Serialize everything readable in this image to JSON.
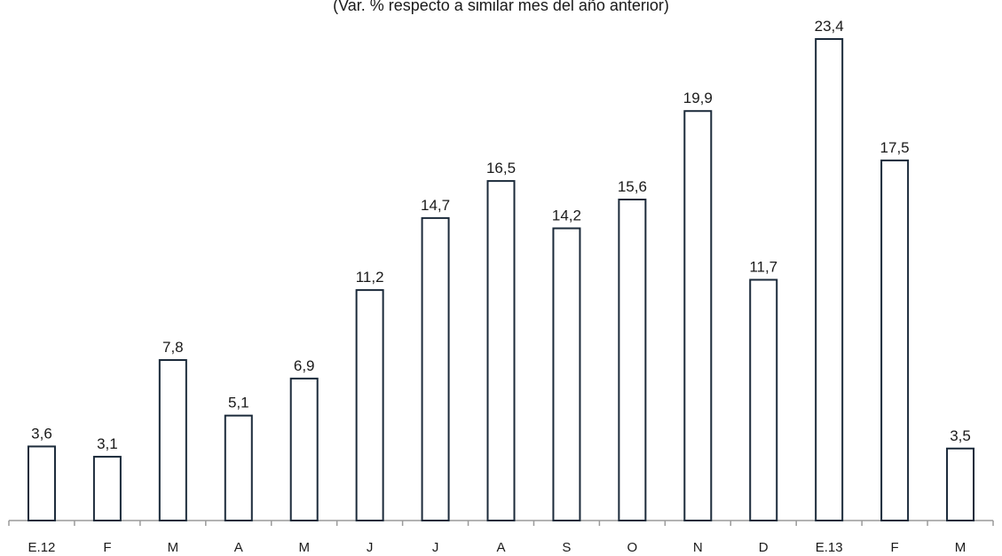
{
  "chart_data": {
    "type": "bar",
    "subtitle": "(Var. % respecto a similar mes del año anterior)",
    "categories": [
      "E.12",
      "F",
      "M",
      "A",
      "M",
      "J",
      "J",
      "A",
      "S",
      "O",
      "N",
      "D",
      "E.13",
      "F",
      "M"
    ],
    "values": [
      3.6,
      3.1,
      7.8,
      5.1,
      6.9,
      11.2,
      14.7,
      16.5,
      14.2,
      15.6,
      19.9,
      11.7,
      23.4,
      17.5,
      3.5
    ],
    "value_labels": [
      "3,6",
      "3,1",
      "7,8",
      "5,1",
      "6,9",
      "11,2",
      "14,7",
      "16,5",
      "14,2",
      "15,6",
      "19,9",
      "11,7",
      "23,4",
      "17,5",
      "3,5"
    ],
    "ylim": [
      0,
      23.4
    ],
    "grid": false,
    "legend": "none",
    "colors": {
      "bar_fill": "#ffffff",
      "bar_stroke": "#1b2a3a",
      "axis": "#9a9a9a"
    }
  }
}
